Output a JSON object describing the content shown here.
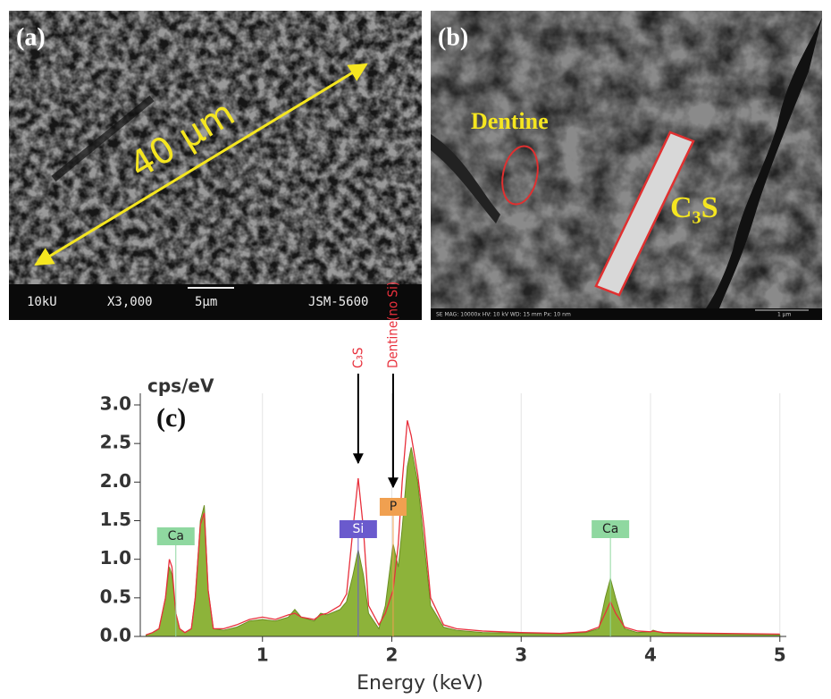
{
  "panels": [
    {
      "label": "(a)",
      "scale_text": "40 µm",
      "footer": [
        "10kU",
        "X3,000",
        "5µm",
        "JSM-5600"
      ]
    },
    {
      "label": "(b)",
      "annotations": [
        "Dentine",
        "C₃S"
      ],
      "footer": [
        "SE   MAG: 10000x   HV: 10 kV   WD: 15 mm   Px: 10 nm",
        "1 µm"
      ]
    }
  ],
  "chart_data": {
    "type": "line",
    "title": "(c)",
    "y_label": "cps/eV",
    "x_label": "Energy (keV)",
    "xlim": [
      0,
      5.05
    ],
    "xticks": [
      1,
      2,
      3,
      4,
      5
    ],
    "ylim": [
      0,
      3.0
    ],
    "yticks": [
      {
        "value": 0,
        "label": "0.0"
      },
      {
        "value": 0.5,
        "label": "0.5"
      },
      {
        "value": 1,
        "label": "1.0"
      },
      {
        "value": 1.5,
        "label": "1.5"
      },
      {
        "value": 2,
        "label": "2.0"
      },
      {
        "value": 2.5,
        "label": "2.5"
      },
      {
        "value": 3,
        "label": "3.0"
      }
    ],
    "grid": true,
    "x": [
      0.1,
      0.15,
      0.2,
      0.25,
      0.28,
      0.3,
      0.33,
      0.36,
      0.4,
      0.45,
      0.48,
      0.52,
      0.55,
      0.58,
      0.62,
      0.7,
      0.8,
      0.9,
      1.0,
      1.1,
      1.2,
      1.25,
      1.3,
      1.4,
      1.45,
      1.5,
      1.6,
      1.65,
      1.7,
      1.74,
      1.78,
      1.82,
      1.9,
      1.95,
      2.01,
      2.05,
      2.08,
      2.12,
      2.15,
      2.2,
      2.25,
      2.3,
      2.4,
      2.5,
      2.7,
      3.0,
      3.3,
      3.5,
      3.6,
      3.65,
      3.69,
      3.73,
      3.8,
      3.9,
      4.0,
      4.02,
      4.1,
      4.5,
      5.0
    ],
    "series": [
      {
        "color": "#8db33a",
        "fill": true,
        "values": [
          0.02,
          0.05,
          0.1,
          0.5,
          0.9,
          0.8,
          0.3,
          0.1,
          0.05,
          0.1,
          0.5,
          1.5,
          1.7,
          0.6,
          0.1,
          0.08,
          0.12,
          0.2,
          0.22,
          0.2,
          0.25,
          0.35,
          0.25,
          0.2,
          0.3,
          0.28,
          0.35,
          0.45,
          0.8,
          1.12,
          0.8,
          0.3,
          0.1,
          0.4,
          1.2,
          0.9,
          1.4,
          2.2,
          2.45,
          2.0,
          1.2,
          0.4,
          0.12,
          0.08,
          0.05,
          0.04,
          0.03,
          0.05,
          0.1,
          0.5,
          0.75,
          0.5,
          0.1,
          0.05,
          0.06,
          0.08,
          0.04,
          0.03,
          0.02
        ]
      },
      {
        "color": "#e8303c",
        "fill": false,
        "values": [
          0.02,
          0.05,
          0.1,
          0.5,
          1.0,
          0.9,
          0.3,
          0.1,
          0.05,
          0.1,
          0.5,
          1.45,
          1.6,
          0.6,
          0.1,
          0.1,
          0.15,
          0.22,
          0.25,
          0.22,
          0.28,
          0.3,
          0.25,
          0.22,
          0.28,
          0.3,
          0.4,
          0.55,
          1.4,
          2.05,
          1.4,
          0.4,
          0.15,
          0.3,
          0.6,
          1.2,
          2.0,
          2.8,
          2.6,
          2.1,
          1.4,
          0.5,
          0.15,
          0.1,
          0.07,
          0.05,
          0.04,
          0.06,
          0.12,
          0.3,
          0.45,
          0.3,
          0.12,
          0.07,
          0.06,
          0.07,
          0.05,
          0.04,
          0.03
        ]
      }
    ],
    "peak_labels": [
      {
        "text": "Ca",
        "x": 0.33,
        "color": "#8fd8a0"
      },
      {
        "text": "Si",
        "x": 1.74,
        "color": "#6a5acd"
      },
      {
        "text": "P",
        "x": 2.01,
        "color": "#f0a050"
      },
      {
        "text": "Ca",
        "x": 3.69,
        "color": "#8fd8a0"
      }
    ],
    "arrow_labels": [
      {
        "text": "C₃S",
        "x": 1.74,
        "color": "#e8303c"
      },
      {
        "text": "Dentine(no Si)",
        "x": 2.01,
        "color": "#e8303c"
      }
    ]
  }
}
